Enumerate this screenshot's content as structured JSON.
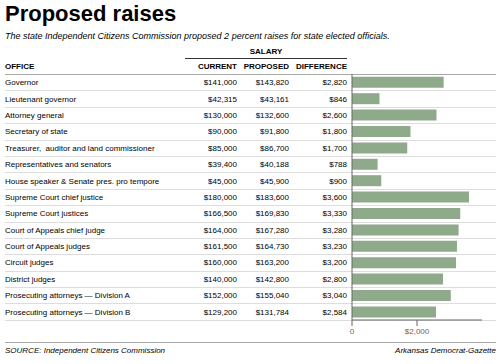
{
  "chart_data": {
    "type": "bar",
    "orientation": "horizontal",
    "title": "Proposed raises",
    "subtitle": "The state Independent Citizens Commission proposed 2 percent raises for state elected officials.",
    "category_label": "OFFICE",
    "categories": [
      "Governor",
      "Lieutenant governor",
      "Attorney general",
      "Secretary of state",
      "Treasurer,  auditor and land commissioner",
      "Representatives and senators",
      "House speaker & Senate pres. pro tempore",
      "Supreme Court chief justice",
      "Supreme Court justices",
      "Court of Appeals chief judge",
      "Court of Appeals judges",
      "Circuit judges",
      "District judges",
      "Prosecuting attorneys — Division A",
      "Prosecuting attorneys — Division B"
    ],
    "group_label": "SALARY",
    "columns": [
      {
        "name": "CURRENT",
        "values": [
          141000,
          42315,
          130000,
          90000,
          85000,
          39400,
          45000,
          180000,
          166500,
          164000,
          161500,
          160000,
          140000,
          152000,
          129200
        ],
        "labels": [
          "$141,000",
          "$42,315",
          "$130,000",
          "$90,000",
          "$85,000",
          "$39,400",
          "$45,000",
          "$180,000",
          "$166,500",
          "$164,000",
          "$161,500",
          "$160,000",
          "$140,000",
          "$152,000",
          "$129,200"
        ]
      },
      {
        "name": "PROPOSED",
        "values": [
          143820,
          43161,
          132600,
          91800,
          86700,
          40188,
          45900,
          183600,
          169830,
          167280,
          164730,
          163200,
          142800,
          155040,
          131784
        ],
        "labels": [
          "$143,820",
          "$43,161",
          "$132,600",
          "$91,800",
          "$86,700",
          "$40,188",
          "$45,900",
          "$183,600",
          "$169,830",
          "$167,280",
          "$164,730",
          "$163,200",
          "$142,800",
          "$155,040",
          "$131,784"
        ]
      }
    ],
    "value_label": "DIFFERENCE",
    "values": [
      2820,
      846,
      2600,
      1800,
      1700,
      788,
      900,
      3600,
      3330,
      3280,
      3230,
      3200,
      2800,
      3040,
      2584
    ],
    "value_labels": [
      "$2,820",
      "$846",
      "$2,600",
      "$1,800",
      "$1,700",
      "$788",
      "$900",
      "$3,600",
      "$3,330",
      "$3,280",
      "$3,230",
      "$3,200",
      "$2,800",
      "$3,040",
      "$2,584"
    ],
    "color": "#8faa8b",
    "xlim": [
      0,
      4000
    ],
    "xticks": [
      0,
      {
        "value": 2000,
        "label": "$2,000"
      }
    ],
    "source": "SOURCE: Independent Citizens Commission",
    "credit": "Arkansas Democrat-Gazette"
  }
}
